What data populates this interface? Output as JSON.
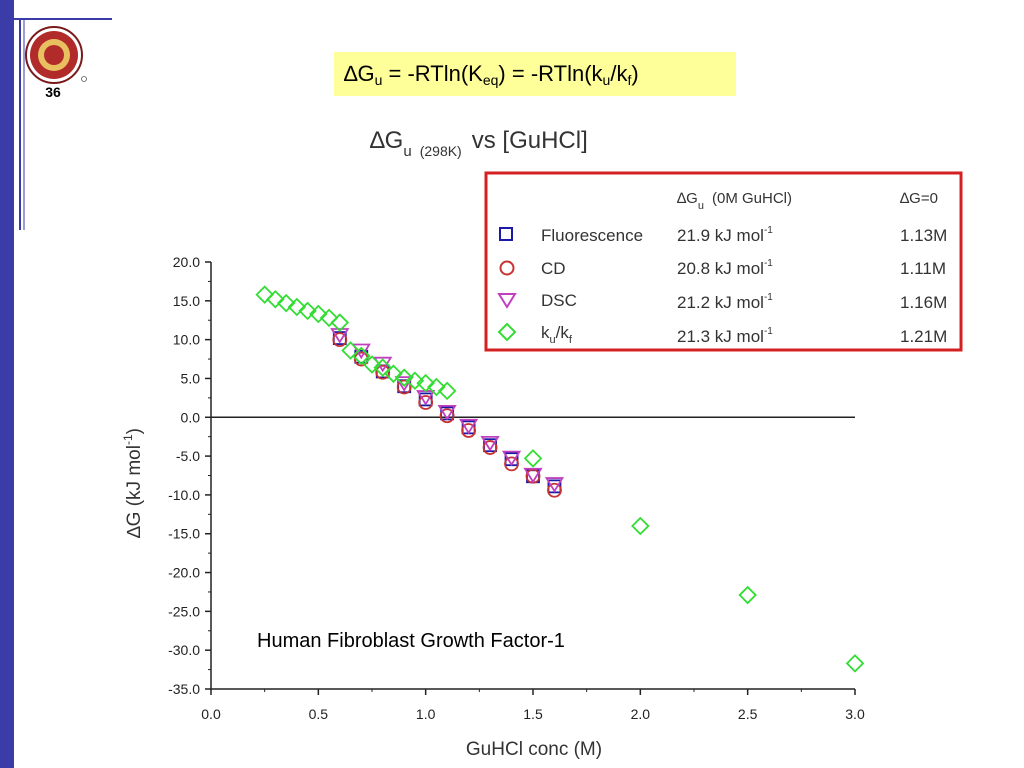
{
  "slide": {
    "number": "36",
    "header": {
      "delta": "∆",
      "g": "G",
      "sub_u": "u",
      "eq1": " = -RTln(K",
      "sub_eq": "eq",
      "eq2": ") = -RTln(k",
      "sub_u2": "u",
      "eq3": "/k",
      "sub_f": "f",
      "eq4": ")"
    },
    "colors": {
      "sidebar": "#3c3ca8",
      "header_highlight": "#ffff99",
      "legend_border": "#d42020"
    },
    "logo": "university-seal"
  },
  "chart_data": {
    "type": "scatter",
    "title": {
      "main": "∆G",
      "sub": "u",
      "temp": "(298K)",
      "rest": "vs [GuHCl]"
    },
    "annotation": "Human Fibroblast Growth Factor-1",
    "xlabel": "GuHCl conc (M)",
    "ylabel": {
      "prefix": "∆G (kJ mol",
      "sup": "-1",
      "suffix": ")"
    },
    "xlim": [
      0,
      3.0
    ],
    "ylim": [
      -35,
      20
    ],
    "x_ticks": [
      "0.0",
      "0.5",
      "1.0",
      "1.5",
      "2.0",
      "2.5",
      "3.0"
    ],
    "y_ticks": [
      "20.0",
      "15.0",
      "10.0",
      "5.0",
      "0.0",
      "-5.0",
      "-10.0",
      "-15.0",
      "-20.0",
      "-25.0",
      "-30.0",
      "-35.0"
    ],
    "zero_line": true,
    "grid": false,
    "legend": {
      "position": "top-right",
      "header": {
        "dg_main": "∆G",
        "dg_sub": "u",
        "dg_rest": "(0M GuHCl)",
        "dg0": "∆G=0"
      },
      "entries": [
        {
          "name": "Fluorescence",
          "marker": "square",
          "color": "#1a1aa6",
          "dg": "21.9 kJ mol",
          "dg_sup": "-1",
          "c0": "1.13M"
        },
        {
          "name": "CD",
          "marker": "circle",
          "color": "#c83232",
          "dg": "20.8 kJ mol",
          "dg_sup": "-1",
          "c0": "1.11M"
        },
        {
          "name": "DSC",
          "marker": "triangle-down",
          "color": "#c040c0",
          "dg": "21.2 kJ mol",
          "dg_sup": "-1",
          "c0": "1.16M"
        },
        {
          "name": "k",
          "name_sub1": "u",
          "name_mid": "/k",
          "name_sub2": "f",
          "marker": "diamond",
          "color": "#33dd33",
          "dg": "21.3 kJ mol",
          "dg_sup": "-1",
          "c0": "1.21M"
        }
      ]
    },
    "series": [
      {
        "name": "Fluorescence",
        "marker": "square",
        "color": "#1a1aa6",
        "points": [
          [
            0.6,
            10.2
          ],
          [
            0.7,
            7.8
          ],
          [
            0.8,
            5.9
          ],
          [
            0.9,
            4.0
          ],
          [
            1.0,
            2.3
          ],
          [
            1.1,
            0.5
          ],
          [
            1.2,
            -1.3
          ],
          [
            1.3,
            -3.6
          ],
          [
            1.4,
            -5.4
          ],
          [
            1.5,
            -7.6
          ],
          [
            1.6,
            -8.9
          ]
        ]
      },
      {
        "name": "CD",
        "marker": "circle",
        "color": "#c83232",
        "points": [
          [
            0.6,
            10.0
          ],
          [
            0.7,
            7.5
          ],
          [
            0.8,
            5.8
          ],
          [
            0.9,
            3.9
          ],
          [
            1.0,
            1.9
          ],
          [
            1.1,
            0.2
          ],
          [
            1.2,
            -1.7
          ],
          [
            1.3,
            -3.9
          ],
          [
            1.4,
            -6.0
          ],
          [
            1.5,
            -7.6
          ],
          [
            1.6,
            -9.4
          ]
        ]
      },
      {
        "name": "DSC",
        "marker": "triangle-down",
        "color": "#c040c0",
        "points": [
          [
            0.6,
            10.6
          ],
          [
            0.7,
            8.6
          ],
          [
            0.8,
            6.9
          ],
          [
            0.9,
            4.4
          ],
          [
            1.0,
            2.6
          ],
          [
            1.1,
            0.7
          ],
          [
            1.2,
            -1.1
          ],
          [
            1.3,
            -3.3
          ],
          [
            1.4,
            -5.2
          ],
          [
            1.5,
            -7.4
          ],
          [
            1.6,
            -8.6
          ]
        ]
      },
      {
        "name": "ku/kf",
        "marker": "diamond",
        "color": "#33dd33",
        "points": [
          [
            0.25,
            15.8
          ],
          [
            0.3,
            15.2
          ],
          [
            0.35,
            14.7
          ],
          [
            0.4,
            14.2
          ],
          [
            0.45,
            13.7
          ],
          [
            0.5,
            13.3
          ],
          [
            0.55,
            12.8
          ],
          [
            0.6,
            12.2
          ],
          [
            0.65,
            8.6
          ],
          [
            0.7,
            7.9
          ],
          [
            0.75,
            6.8
          ],
          [
            0.8,
            6.4
          ],
          [
            0.85,
            5.6
          ],
          [
            0.9,
            5.1
          ],
          [
            0.95,
            4.7
          ],
          [
            1.0,
            4.4
          ],
          [
            1.05,
            3.9
          ],
          [
            1.1,
            3.4
          ],
          [
            1.5,
            -5.3
          ],
          [
            2.0,
            -14.0
          ],
          [
            2.5,
            -22.9
          ],
          [
            3.0,
            -31.7
          ]
        ]
      }
    ]
  }
}
